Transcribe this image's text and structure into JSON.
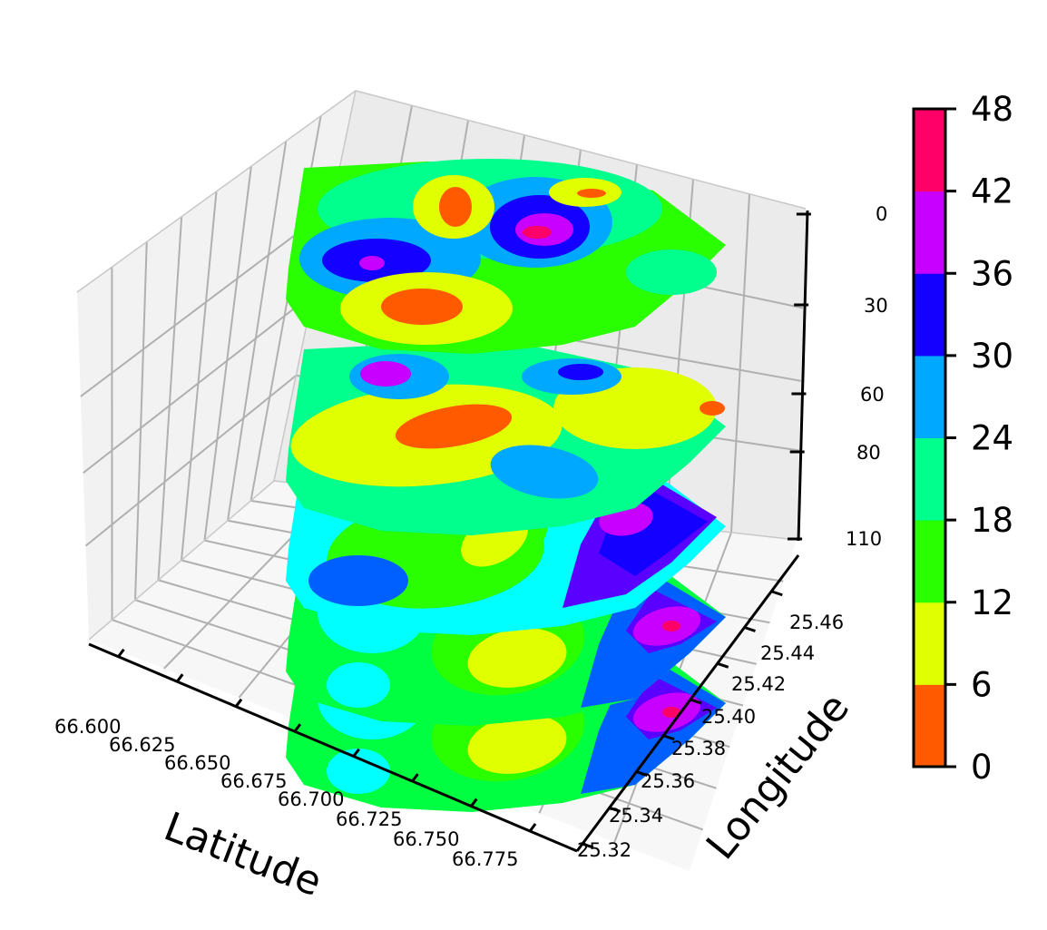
{
  "chart_data": {
    "type": "contourf_3d_stacked",
    "xlabel": "Latitude",
    "ylabel": "Longitude",
    "zlabel": "",
    "x_ticks": [
      "66.600",
      "66.625",
      "66.650",
      "66.675",
      "66.700",
      "66.725",
      "66.750",
      "66.775"
    ],
    "y_ticks": [
      "25.32",
      "25.34",
      "25.36",
      "25.38",
      "25.40",
      "25.42",
      "25.44",
      "25.46"
    ],
    "z_ticks": [
      "0",
      "30",
      "60",
      "80",
      "110"
    ],
    "depth_levels": [
      0,
      30,
      60,
      80,
      110
    ],
    "z_inverted": true,
    "grid": true,
    "colorbar": {
      "ticks": [
        "0",
        "6",
        "12",
        "18",
        "24",
        "30",
        "36",
        "42",
        "48"
      ],
      "levels": [
        0,
        6,
        12,
        18,
        24,
        30,
        36,
        42,
        48
      ],
      "colors": [
        "#ff5a00",
        "#e0ff00",
        "#2aff00",
        "#00ff8c",
        "#00a8ff",
        "#1400ff",
        "#c800ff",
        "#ff0068"
      ]
    },
    "palette": {
      "c0": "#ff5a00",
      "c1": "#e0ff00",
      "c2": "#2aff00",
      "c3": "#00ff8c",
      "c4": "#00a8ff",
      "c5": "#1400ff",
      "c6": "#c800ff",
      "c7": "#ff0068",
      "cyan": "#00ffff",
      "lime": "#00ff40",
      "royal": "#0060ff",
      "violet": "#5a00ff"
    }
  }
}
